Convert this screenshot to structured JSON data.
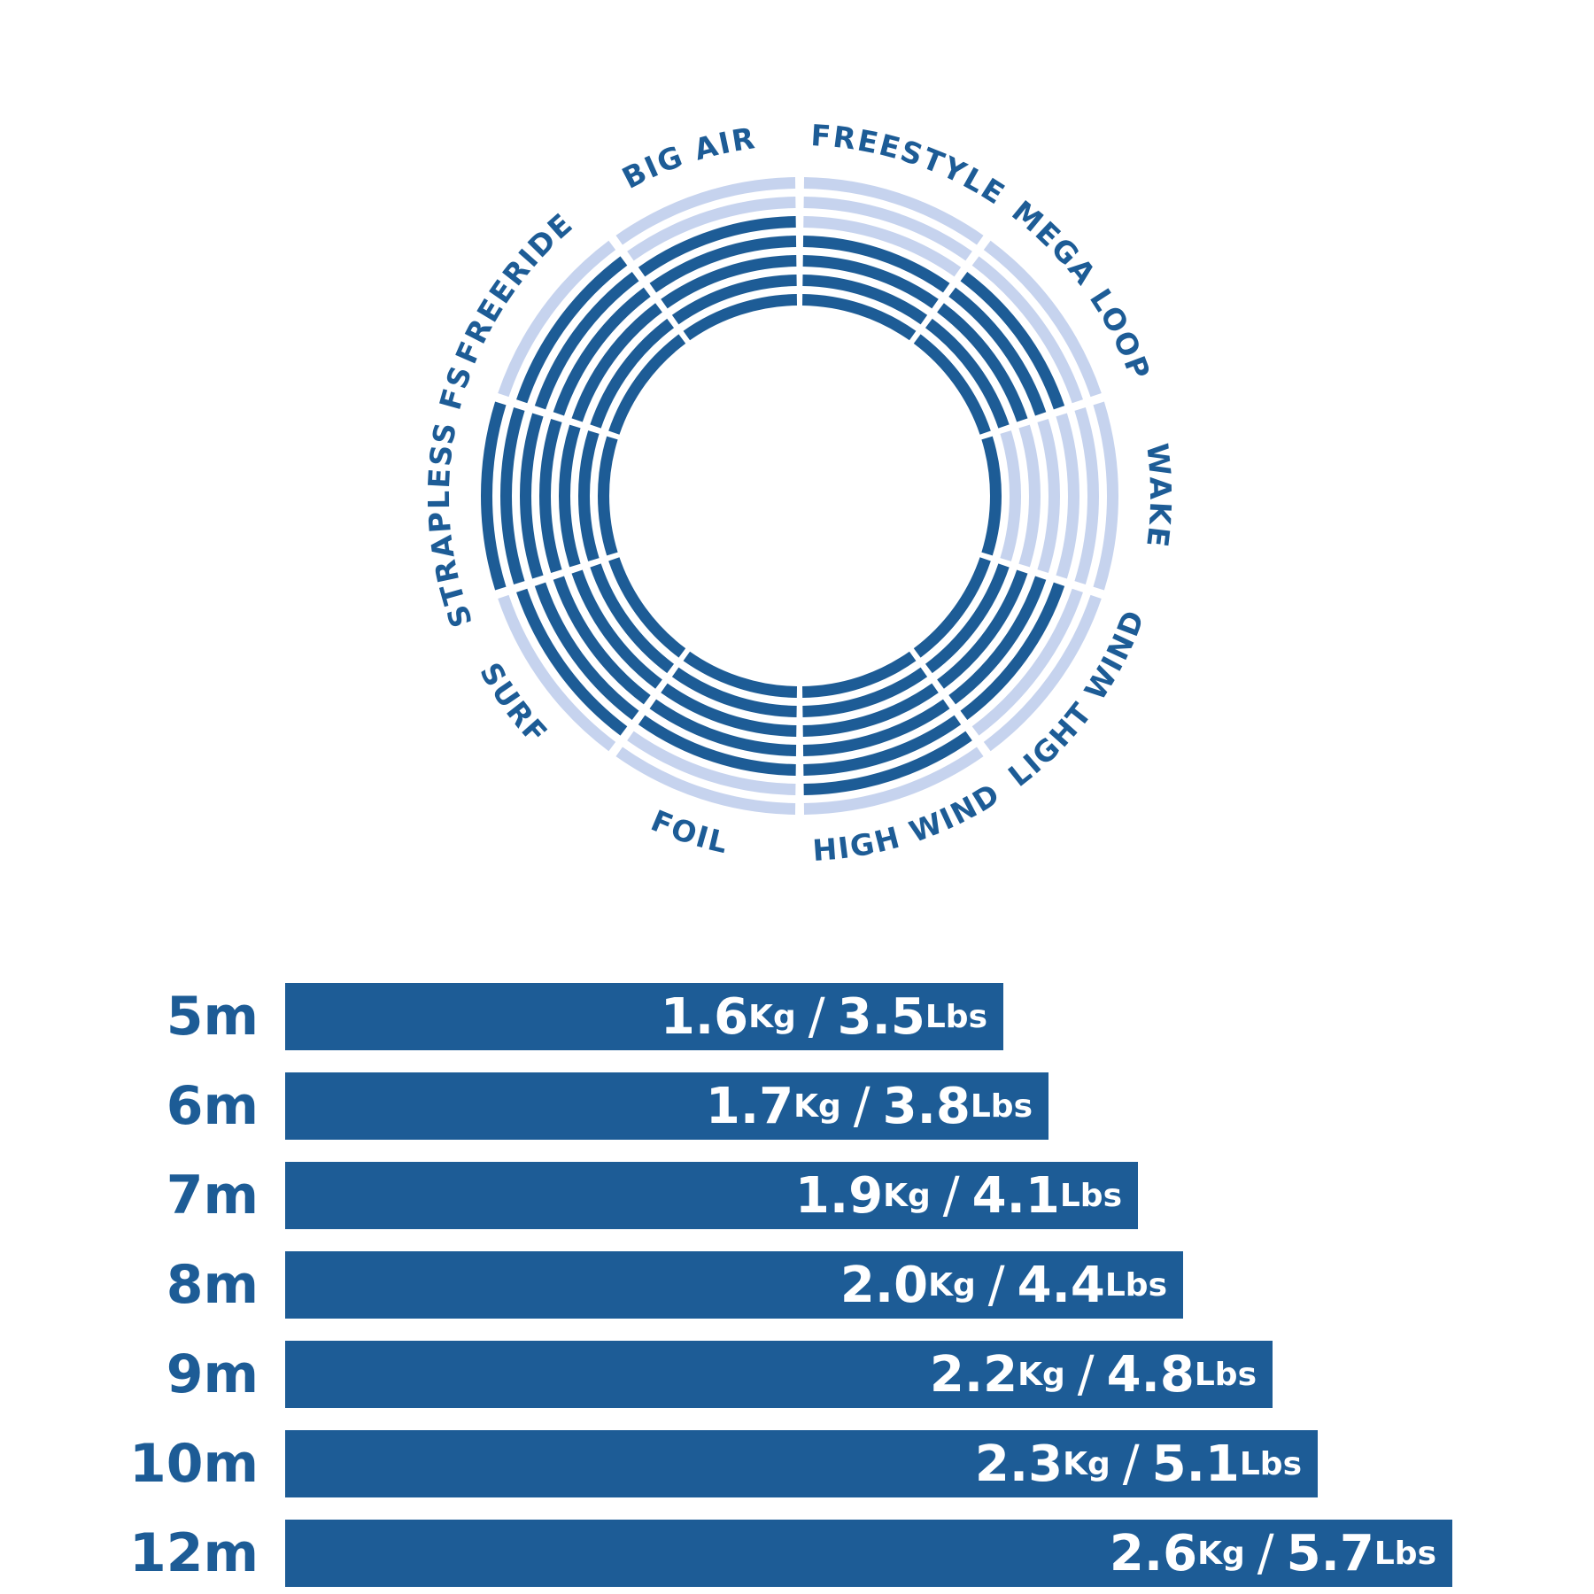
{
  "colors": {
    "dark": "#1d5c96",
    "light": "#c6d3ee",
    "text": "#1d5c96"
  },
  "chart_data": [
    {
      "type": "radial-bar",
      "max_rings": 7,
      "segments": [
        {
          "label": "FREESTYLE",
          "value": 4
        },
        {
          "label": "MEGA LOOP",
          "value": 5
        },
        {
          "label": "WAKE",
          "value": 1
        },
        {
          "label": "LIGHT WIND",
          "value": 5
        },
        {
          "label": "HIGH WIND",
          "value": 6
        },
        {
          "label": "FOIL",
          "value": 5
        },
        {
          "label": "SURF",
          "value": 6
        },
        {
          "label": "STRAPLESS FS",
          "value": 7
        },
        {
          "label": "FREERIDE",
          "value": 6
        },
        {
          "label": "BIG AIR",
          "value": 5
        }
      ]
    },
    {
      "type": "bar",
      "orientation": "horizontal",
      "unit_kg": "Kg",
      "unit_lbs": "Lbs",
      "categories": [
        "5m",
        "6m",
        "7m",
        "8m",
        "9m",
        "10m",
        "12m"
      ],
      "values_kg": [
        "1.6",
        "1.7",
        "1.9",
        "2.0",
        "2.2",
        "2.3",
        "2.6"
      ],
      "values_lbs": [
        "3.5",
        "3.8",
        "4.1",
        "4.4",
        "4.8",
        "5.1",
        "5.7"
      ]
    }
  ]
}
